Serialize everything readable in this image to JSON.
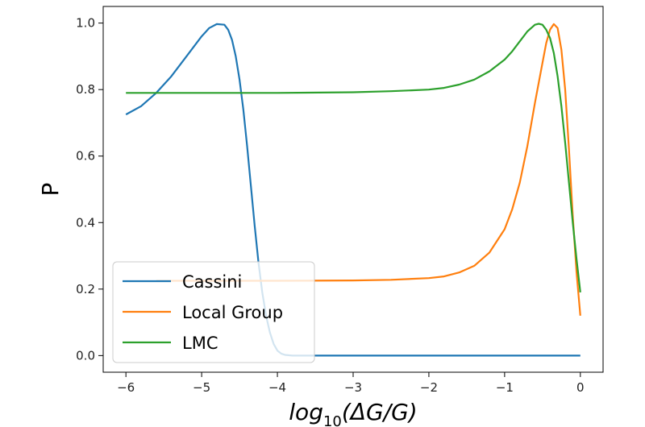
{
  "chart_data": {
    "type": "line",
    "title": "",
    "xlabel": "log10(ΔG/G)",
    "xlabel_parts": {
      "base": "log",
      "sub": "10",
      "rest": "(ΔG/G)"
    },
    "ylabel": "P",
    "xlim": [
      -6.3,
      0.3
    ],
    "ylim": [
      -0.05,
      1.05
    ],
    "x_ticks": [
      -6,
      -5,
      -4,
      -3,
      -2,
      -1,
      0
    ],
    "x_tick_labels": [
      "−6",
      "−5",
      "−4",
      "−3",
      "−2",
      "−1",
      "0"
    ],
    "y_ticks": [
      0.0,
      0.2,
      0.4,
      0.6,
      0.8,
      1.0
    ],
    "y_tick_labels": [
      "0.0",
      "0.2",
      "0.4",
      "0.6",
      "0.8",
      "1.0"
    ],
    "grid": false,
    "legend_position": "lower-left",
    "series": [
      {
        "name": "Cassini",
        "color": "#1f77b4",
        "x": [
          -6.0,
          -5.8,
          -5.6,
          -5.4,
          -5.2,
          -5.0,
          -4.9,
          -4.8,
          -4.7,
          -4.65,
          -4.6,
          -4.55,
          -4.5,
          -4.45,
          -4.4,
          -4.35,
          -4.3,
          -4.25,
          -4.2,
          -4.15,
          -4.1,
          -4.05,
          -4.0,
          -3.95,
          -3.9,
          -3.8,
          -3.5,
          -3.0,
          -2.0,
          -1.0,
          0.0
        ],
        "y": [
          0.725,
          0.75,
          0.79,
          0.84,
          0.9,
          0.96,
          0.985,
          0.997,
          0.995,
          0.98,
          0.95,
          0.9,
          0.83,
          0.74,
          0.63,
          0.51,
          0.39,
          0.28,
          0.19,
          0.12,
          0.07,
          0.035,
          0.015,
          0.006,
          0.002,
          0.0,
          0.0,
          0.0,
          0.0,
          0.0,
          0.0
        ]
      },
      {
        "name": "Local Group",
        "color": "#ff7f0e",
        "x": [
          -5.6,
          -5.0,
          -4.0,
          -3.0,
          -2.5,
          -2.0,
          -1.8,
          -1.6,
          -1.4,
          -1.2,
          -1.0,
          -0.9,
          -0.8,
          -0.7,
          -0.6,
          -0.5,
          -0.45,
          -0.4,
          -0.35,
          -0.3,
          -0.25,
          -0.2,
          -0.15,
          -0.1,
          -0.05,
          0.0
        ],
        "y": [
          0.225,
          0.225,
          0.225,
          0.226,
          0.228,
          0.233,
          0.238,
          0.25,
          0.27,
          0.31,
          0.38,
          0.44,
          0.52,
          0.63,
          0.76,
          0.88,
          0.94,
          0.98,
          0.997,
          0.985,
          0.92,
          0.8,
          0.62,
          0.42,
          0.25,
          0.12
        ]
      },
      {
        "name": "LMC",
        "color": "#2ca02c",
        "x": [
          -6.0,
          -5.0,
          -4.0,
          -3.0,
          -2.5,
          -2.0,
          -1.8,
          -1.6,
          -1.4,
          -1.2,
          -1.0,
          -0.9,
          -0.8,
          -0.7,
          -0.6,
          -0.55,
          -0.5,
          -0.45,
          -0.4,
          -0.35,
          -0.3,
          -0.25,
          -0.2,
          -0.15,
          -0.1,
          -0.05,
          0.0
        ],
        "y": [
          0.79,
          0.79,
          0.79,
          0.792,
          0.795,
          0.8,
          0.805,
          0.815,
          0.83,
          0.855,
          0.89,
          0.915,
          0.945,
          0.975,
          0.995,
          0.998,
          0.995,
          0.98,
          0.955,
          0.91,
          0.84,
          0.75,
          0.64,
          0.52,
          0.4,
          0.29,
          0.19
        ]
      }
    ]
  }
}
